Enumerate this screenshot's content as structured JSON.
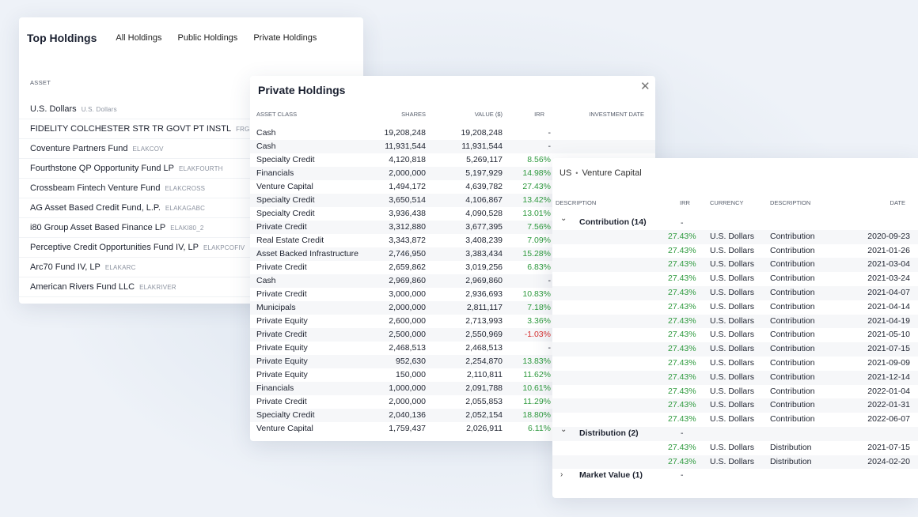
{
  "top_holdings": {
    "title": "Top Holdings",
    "tabs": [
      "All Holdings",
      "Public Holdings",
      "Private Holdings"
    ],
    "column_label": "ASSET",
    "items": [
      {
        "name": "U.S. Dollars",
        "ticker": "U.S. Dollars"
      },
      {
        "name": "FIDELITY COLCHESTER STR TR GOVT PT INSTL",
        "ticker": "FRGXX"
      },
      {
        "name": "Coventure Partners Fund",
        "ticker": "ELAKCOV"
      },
      {
        "name": "Fourthstone QP Opportunity Fund LP",
        "ticker": "ELAKFOURTH"
      },
      {
        "name": "Crossbeam Fintech Venture Fund",
        "ticker": "ELAKCROSS"
      },
      {
        "name": "AG Asset Based Credit Fund, L.P.",
        "ticker": "ELAKAGABC"
      },
      {
        "name": "i80 Group Asset Based Finance LP",
        "ticker": "ELAKI80_2"
      },
      {
        "name": "Perceptive Credit Opportunities Fund IV, LP",
        "ticker": "ELAKPCOFIV"
      },
      {
        "name": "Arc70 Fund IV, LP",
        "ticker": "ELAKARC"
      },
      {
        "name": "American Rivers Fund LLC",
        "ticker": "ELAKRIVER"
      }
    ]
  },
  "private_holdings": {
    "title": "Private Holdings",
    "close_icon": "close-icon",
    "columns": {
      "asset_class": "ASSET CLASS",
      "shares": "SHARES",
      "value": "VALUE ($)",
      "irr": "IRR",
      "date": "INVESTMENT DATE"
    },
    "rows": [
      {
        "asset_class": "Cash",
        "shares": "19,208,248",
        "value": "19,208,248",
        "irr": "-"
      },
      {
        "asset_class": "Cash",
        "shares": "11,931,544",
        "value": "11,931,544",
        "irr": "-"
      },
      {
        "asset_class": "Specialty Credit",
        "shares": "4,120,818",
        "value": "5,269,117",
        "irr": "8.56%"
      },
      {
        "asset_class": "Financials",
        "shares": "2,000,000",
        "value": "5,197,929",
        "irr": "14.98%"
      },
      {
        "asset_class": "Venture Capital",
        "shares": "1,494,172",
        "value": "4,639,782",
        "irr": "27.43%"
      },
      {
        "asset_class": "Specialty Credit",
        "shares": "3,650,514",
        "value": "4,106,867",
        "irr": "13.42%"
      },
      {
        "asset_class": "Specialty Credit",
        "shares": "3,936,438",
        "value": "4,090,528",
        "irr": "13.01%"
      },
      {
        "asset_class": "Private Credit",
        "shares": "3,312,880",
        "value": "3,677,395",
        "irr": "7.56%"
      },
      {
        "asset_class": "Real Estate Credit",
        "shares": "3,343,872",
        "value": "3,408,239",
        "irr": "7.09%"
      },
      {
        "asset_class": "Asset Backed Infrastructure",
        "shares": "2,746,950",
        "value": "3,383,434",
        "irr": "15.28%"
      },
      {
        "asset_class": "Private Credit",
        "shares": "2,659,862",
        "value": "3,019,256",
        "irr": "6.83%"
      },
      {
        "asset_class": "Cash",
        "shares": "2,969,860",
        "value": "2,969,860",
        "irr": "-"
      },
      {
        "asset_class": "Private Credit",
        "shares": "3,000,000",
        "value": "2,936,693",
        "irr": "10.83%"
      },
      {
        "asset_class": "Municipals",
        "shares": "2,000,000",
        "value": "2,811,117",
        "irr": "7.18%"
      },
      {
        "asset_class": "Private Equity",
        "shares": "2,600,000",
        "value": "2,713,993",
        "irr": "3.36%"
      },
      {
        "asset_class": "Private Credit",
        "shares": "2,500,000",
        "value": "2,550,969",
        "irr": "-1.03%"
      },
      {
        "asset_class": "Private Equity",
        "shares": "2,468,513",
        "value": "2,468,513",
        "irr": "-"
      },
      {
        "asset_class": "Private Equity",
        "shares": "952,630",
        "value": "2,254,870",
        "irr": "13.83%"
      },
      {
        "asset_class": "Private Equity",
        "shares": "150,000",
        "value": "2,110,811",
        "irr": "11.62%"
      },
      {
        "asset_class": "Financials",
        "shares": "1,000,000",
        "value": "2,091,788",
        "irr": "10.61%"
      },
      {
        "asset_class": "Private Credit",
        "shares": "2,000,000",
        "value": "2,055,853",
        "irr": "11.29%"
      },
      {
        "asset_class": "Specialty Credit",
        "shares": "2,040,136",
        "value": "2,052,154",
        "irr": "18.80%"
      },
      {
        "asset_class": "Venture Capital",
        "shares": "1,759,437",
        "value": "2,026,911",
        "irr": "6.11%"
      }
    ]
  },
  "venture_detail": {
    "breadcrumb": {
      "region": "US",
      "separator": "•",
      "asset": "Venture Capital"
    },
    "columns": {
      "description_left": "DESCRIPTION",
      "irr": "IRR",
      "currency": "CURRENCY",
      "description": "DESCRIPTION",
      "date": "DATE"
    },
    "header_dash": "-",
    "groups": [
      {
        "name": "Contribution (14)",
        "expanded": true,
        "chevron": "chevron-down-icon",
        "dash": "",
        "rows": [
          {
            "irr": "27.43%",
            "currency": "U.S. Dollars",
            "description": "Contribution",
            "date": "2020-09-23"
          },
          {
            "irr": "27.43%",
            "currency": "U.S. Dollars",
            "description": "Contribution",
            "date": "2021-01-26"
          },
          {
            "irr": "27.43%",
            "currency": "U.S. Dollars",
            "description": "Contribution",
            "date": "2021-03-04"
          },
          {
            "irr": "27.43%",
            "currency": "U.S. Dollars",
            "description": "Contribution",
            "date": "2021-03-24"
          },
          {
            "irr": "27.43%",
            "currency": "U.S. Dollars",
            "description": "Contribution",
            "date": "2021-04-07"
          },
          {
            "irr": "27.43%",
            "currency": "U.S. Dollars",
            "description": "Contribution",
            "date": "2021-04-14"
          },
          {
            "irr": "27.43%",
            "currency": "U.S. Dollars",
            "description": "Contribution",
            "date": "2021-04-19"
          },
          {
            "irr": "27.43%",
            "currency": "U.S. Dollars",
            "description": "Contribution",
            "date": "2021-05-10"
          },
          {
            "irr": "27.43%",
            "currency": "U.S. Dollars",
            "description": "Contribution",
            "date": "2021-07-15"
          },
          {
            "irr": "27.43%",
            "currency": "U.S. Dollars",
            "description": "Contribution",
            "date": "2021-09-09"
          },
          {
            "irr": "27.43%",
            "currency": "U.S. Dollars",
            "description": "Contribution",
            "date": "2021-12-14"
          },
          {
            "irr": "27.43%",
            "currency": "U.S. Dollars",
            "description": "Contribution",
            "date": "2022-01-04"
          },
          {
            "irr": "27.43%",
            "currency": "U.S. Dollars",
            "description": "Contribution",
            "date": "2022-01-31"
          },
          {
            "irr": "27.43%",
            "currency": "U.S. Dollars",
            "description": "Contribution",
            "date": "2022-06-07"
          }
        ]
      },
      {
        "name": "Distribution (2)",
        "expanded": true,
        "chevron": "chevron-down-icon",
        "dash": "-",
        "rows": [
          {
            "irr": "27.43%",
            "currency": "U.S. Dollars",
            "description": "Distribution",
            "date": "2021-07-15"
          },
          {
            "irr": "27.43%",
            "currency": "U.S. Dollars",
            "description": "Distribution",
            "date": "2024-02-20"
          }
        ]
      },
      {
        "name": "Market Value (1)",
        "expanded": false,
        "chevron": "chevron-right-icon",
        "dash": "-",
        "rows": []
      }
    ]
  }
}
